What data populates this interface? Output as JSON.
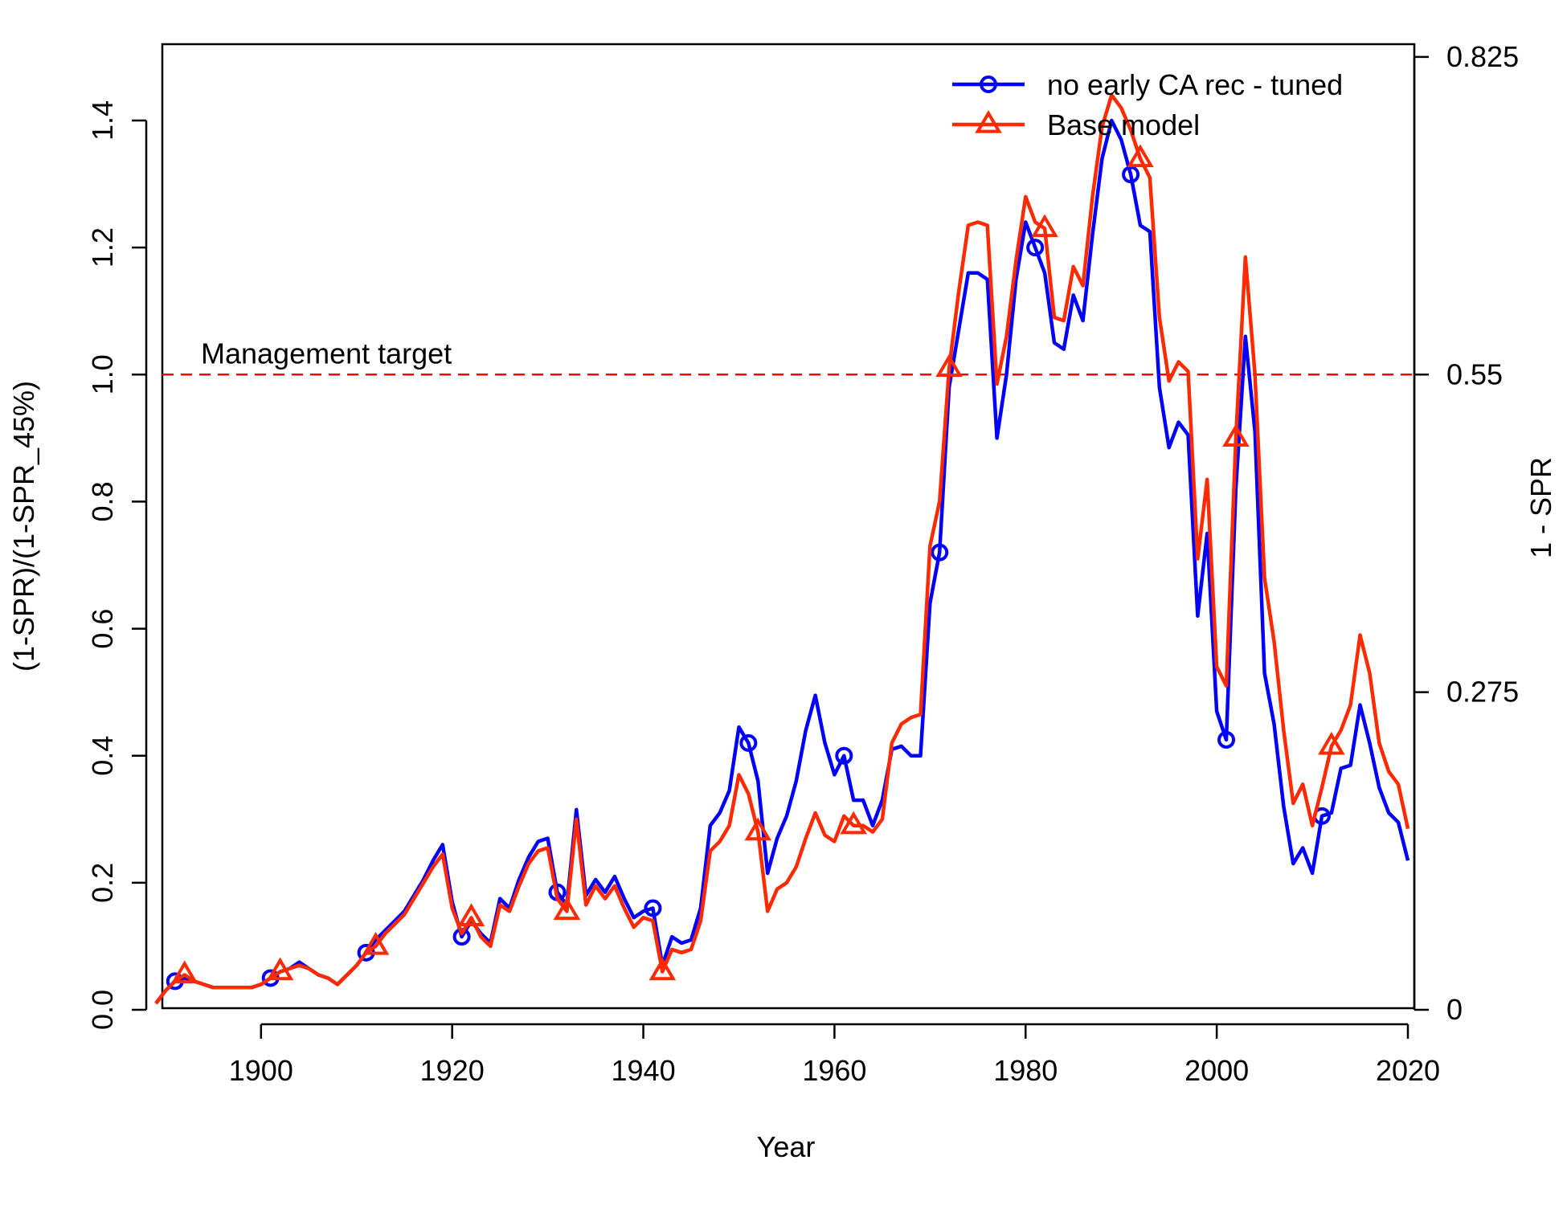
{
  "chart_data": {
    "type": "line",
    "title": "",
    "xlabel": "Year",
    "ylabel": "(1-SPR)/(1-SPR_45%)",
    "ylabel_right": "1 - SPR",
    "xlim": [
      1889,
      2020
    ],
    "ylim": [
      0,
      1.4
    ],
    "x_ticks": [
      1900,
      1920,
      1940,
      1960,
      1980,
      2000,
      2020
    ],
    "y_ticks": [
      "0.0",
      "0.2",
      "0.4",
      "0.6",
      "0.8",
      "1.0",
      "1.2",
      "1.4"
    ],
    "y_ticks_right": [
      "0",
      "0.275",
      "0.55",
      "0.825"
    ],
    "y_ticks_right_values": [
      0,
      0.5,
      1.0,
      1.5
    ],
    "legend_position": "top-right",
    "reference_line": {
      "y": 1.0,
      "label": "Management target",
      "color": "#ff0000"
    },
    "colors": {
      "blue": "#0000ff",
      "red": "#ff2a00"
    },
    "series": [
      {
        "name": "no early CA rec - tuned",
        "color": "#0000ff",
        "marker": "circle",
        "marker_years": [
          1891,
          1901,
          1911,
          1921,
          1931,
          1941,
          1951,
          1961,
          1971,
          1981,
          1991,
          2001,
          2011
        ],
        "x": [
          1889,
          1890,
          1891,
          1892,
          1893,
          1894,
          1895,
          1896,
          1897,
          1898,
          1899,
          1900,
          1901,
          1902,
          1903,
          1904,
          1905,
          1906,
          1907,
          1908,
          1909,
          1910,
          1911,
          1912,
          1913,
          1914,
          1915,
          1916,
          1917,
          1918,
          1919,
          1920,
          1921,
          1922,
          1923,
          1924,
          1925,
          1926,
          1927,
          1928,
          1929,
          1930,
          1931,
          1932,
          1933,
          1934,
          1935,
          1936,
          1937,
          1938,
          1939,
          1940,
          1941,
          1942,
          1943,
          1944,
          1945,
          1946,
          1947,
          1948,
          1949,
          1950,
          1951,
          1952,
          1953,
          1954,
          1955,
          1956,
          1957,
          1958,
          1959,
          1960,
          1961,
          1962,
          1963,
          1964,
          1965,
          1966,
          1967,
          1968,
          1969,
          1970,
          1971,
          1972,
          1973,
          1974,
          1975,
          1976,
          1977,
          1978,
          1979,
          1980,
          1981,
          1982,
          1983,
          1984,
          1985,
          1986,
          1987,
          1988,
          1989,
          1990,
          1991,
          1992,
          1993,
          1994,
          1995,
          1996,
          1997,
          1998,
          1999,
          2000,
          2001,
          2002,
          2003,
          2004,
          2005,
          2006,
          2007,
          2008,
          2009,
          2010,
          2011,
          2012,
          2013,
          2014,
          2015,
          2016,
          2017,
          2018,
          2019,
          2020
        ],
        "y": [
          0.01,
          0.03,
          0.045,
          0.05,
          0.045,
          0.04,
          0.035,
          0.035,
          0.035,
          0.035,
          0.035,
          0.04,
          0.05,
          0.06,
          0.065,
          0.075,
          0.065,
          0.055,
          0.05,
          0.04,
          0.055,
          0.07,
          0.09,
          0.11,
          0.125,
          0.14,
          0.155,
          0.18,
          0.205,
          0.235,
          0.26,
          0.17,
          0.115,
          0.14,
          0.12,
          0.105,
          0.175,
          0.16,
          0.205,
          0.24,
          0.265,
          0.27,
          0.185,
          0.165,
          0.315,
          0.18,
          0.205,
          0.185,
          0.21,
          0.175,
          0.145,
          0.155,
          0.16,
          0.07,
          0.115,
          0.105,
          0.11,
          0.16,
          0.29,
          0.31,
          0.345,
          0.445,
          0.42,
          0.36,
          0.215,
          0.27,
          0.305,
          0.36,
          0.44,
          0.495,
          0.42,
          0.37,
          0.4,
          0.33,
          0.33,
          0.29,
          0.33,
          0.41,
          0.415,
          0.4,
          0.4,
          0.64,
          0.72,
          0.98,
          1.07,
          1.16,
          1.16,
          1.15,
          0.9,
          1.0,
          1.15,
          1.24,
          1.2,
          1.16,
          1.05,
          1.04,
          1.125,
          1.085,
          1.22,
          1.34,
          1.4,
          1.37,
          1.315,
          1.235,
          1.225,
          0.98,
          0.885,
          0.925,
          0.905,
          0.62,
          0.75,
          0.47,
          0.425,
          0.82,
          1.06,
          0.91,
          0.53,
          0.45,
          0.32,
          0.23,
          0.255,
          0.215,
          0.305,
          0.31,
          0.38,
          0.385,
          0.48,
          0.42,
          0.35,
          0.31,
          0.295,
          0.235
        ]
      },
      {
        "name": "Base model",
        "color": "#ff2a00",
        "marker": "triangle",
        "marker_years": [
          1892,
          1902,
          1912,
          1922,
          1932,
          1942,
          1952,
          1962,
          1972,
          1982,
          1992,
          2002,
          2012
        ],
        "x": [
          1889,
          1890,
          1891,
          1892,
          1893,
          1894,
          1895,
          1896,
          1897,
          1898,
          1899,
          1900,
          1901,
          1902,
          1903,
          1904,
          1905,
          1906,
          1907,
          1908,
          1909,
          1910,
          1911,
          1912,
          1913,
          1914,
          1915,
          1916,
          1917,
          1918,
          1919,
          1920,
          1921,
          1922,
          1923,
          1924,
          1925,
          1926,
          1927,
          1928,
          1929,
          1930,
          1931,
          1932,
          1933,
          1934,
          1935,
          1936,
          1937,
          1938,
          1939,
          1940,
          1941,
          1942,
          1943,
          1944,
          1945,
          1946,
          1947,
          1948,
          1949,
          1950,
          1951,
          1952,
          1953,
          1954,
          1955,
          1956,
          1957,
          1958,
          1959,
          1960,
          1961,
          1962,
          1963,
          1964,
          1965,
          1966,
          1967,
          1968,
          1969,
          1970,
          1971,
          1972,
          1973,
          1974,
          1975,
          1976,
          1977,
          1978,
          1979,
          1980,
          1981,
          1982,
          1983,
          1984,
          1985,
          1986,
          1987,
          1988,
          1989,
          1990,
          1991,
          1992,
          1993,
          1994,
          1995,
          1996,
          1997,
          1998,
          1999,
          2000,
          2001,
          2002,
          2003,
          2004,
          2005,
          2006,
          2007,
          2008,
          2009,
          2010,
          2011,
          2012,
          2013,
          2014,
          2015,
          2016,
          2017,
          2018,
          2019,
          2020
        ],
        "y": [
          0.01,
          0.03,
          0.045,
          0.055,
          0.045,
          0.04,
          0.035,
          0.035,
          0.035,
          0.035,
          0.035,
          0.04,
          0.05,
          0.06,
          0.065,
          0.07,
          0.065,
          0.055,
          0.05,
          0.04,
          0.055,
          0.07,
          0.09,
          0.1,
          0.12,
          0.135,
          0.15,
          0.175,
          0.2,
          0.225,
          0.245,
          0.16,
          0.12,
          0.145,
          0.115,
          0.1,
          0.165,
          0.155,
          0.195,
          0.23,
          0.25,
          0.255,
          0.175,
          0.155,
          0.3,
          0.165,
          0.195,
          0.175,
          0.195,
          0.16,
          0.13,
          0.145,
          0.14,
          0.06,
          0.095,
          0.09,
          0.095,
          0.14,
          0.25,
          0.265,
          0.29,
          0.37,
          0.34,
          0.28,
          0.155,
          0.19,
          0.2,
          0.225,
          0.27,
          0.31,
          0.275,
          0.265,
          0.305,
          0.29,
          0.29,
          0.28,
          0.3,
          0.42,
          0.45,
          0.46,
          0.465,
          0.73,
          0.8,
          1.01,
          1.13,
          1.235,
          1.24,
          1.235,
          0.985,
          1.06,
          1.18,
          1.28,
          1.24,
          1.23,
          1.09,
          1.085,
          1.17,
          1.14,
          1.28,
          1.39,
          1.44,
          1.42,
          1.385,
          1.34,
          1.31,
          1.09,
          0.99,
          1.02,
          1.005,
          0.71,
          0.835,
          0.54,
          0.51,
          0.9,
          1.185,
          1.0,
          0.68,
          0.58,
          0.44,
          0.325,
          0.355,
          0.29,
          0.35,
          0.415,
          0.44,
          0.48,
          0.59,
          0.53,
          0.42,
          0.375,
          0.355,
          0.285
        ]
      }
    ]
  }
}
